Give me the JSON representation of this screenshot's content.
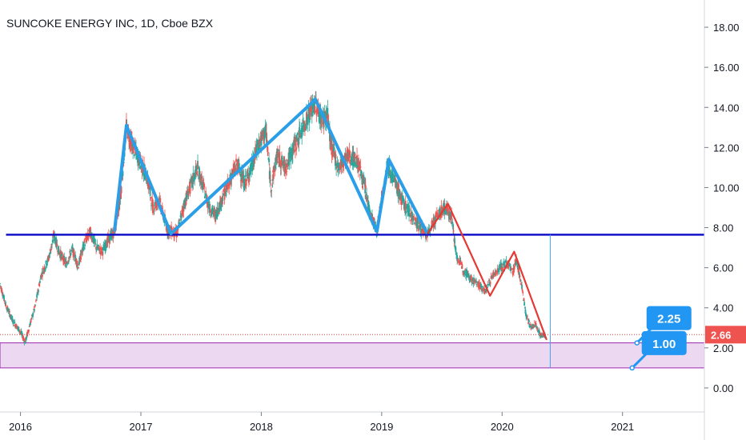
{
  "chart_data": {
    "type": "candlestick",
    "title": "SUNCOKE ENERGY INC, 1D, Cboe BZX",
    "x_ticks": [
      "2016",
      "2017",
      "2018",
      "2019",
      "2020",
      "2021"
    ],
    "y_ticks": [
      "0.00",
      "2.00",
      "4.00",
      "6.00",
      "8.00",
      "10.00",
      "12.00",
      "14.00",
      "16.00",
      "18.00"
    ],
    "ylim": [
      -1.2,
      19.2
    ],
    "xlim": [
      2015.83,
      2021.68
    ],
    "last_price": "2.66",
    "price_series": [
      [
        2015.83,
        5.2
      ],
      [
        2015.88,
        4.1
      ],
      [
        2015.94,
        3.3
      ],
      [
        2015.99,
        2.9
      ],
      [
        2016.04,
        2.3
      ],
      [
        2016.08,
        3.2
      ],
      [
        2016.12,
        4.0
      ],
      [
        2016.17,
        5.6
      ],
      [
        2016.23,
        6.4
      ],
      [
        2016.28,
        7.6
      ],
      [
        2016.32,
        6.8
      ],
      [
        2016.38,
        6.2
      ],
      [
        2016.43,
        6.9
      ],
      [
        2016.48,
        6.1
      ],
      [
        2016.53,
        7.2
      ],
      [
        2016.58,
        7.8
      ],
      [
        2016.63,
        7.0
      ],
      [
        2016.68,
        6.8
      ],
      [
        2016.73,
        7.4
      ],
      [
        2016.78,
        7.8
      ],
      [
        2016.83,
        9.5
      ],
      [
        2016.88,
        13.0
      ],
      [
        2016.93,
        12.1
      ],
      [
        2016.98,
        11.5
      ],
      [
        2017.05,
        10.5
      ],
      [
        2017.1,
        9.0
      ],
      [
        2017.15,
        9.4
      ],
      [
        2017.22,
        7.9
      ],
      [
        2017.3,
        7.7
      ],
      [
        2017.36,
        9.2
      ],
      [
        2017.42,
        10.2
      ],
      [
        2017.47,
        11.0
      ],
      [
        2017.52,
        10.0
      ],
      [
        2017.57,
        9.0
      ],
      [
        2017.62,
        8.6
      ],
      [
        2017.68,
        9.5
      ],
      [
        2017.74,
        10.4
      ],
      [
        2017.8,
        11.2
      ],
      [
        2017.86,
        10.2
      ],
      [
        2017.92,
        11.0
      ],
      [
        2017.98,
        12.2
      ],
      [
        2018.04,
        12.8
      ],
      [
        2018.08,
        10.0
      ],
      [
        2018.13,
        11.6
      ],
      [
        2018.2,
        11.0
      ],
      [
        2018.27,
        12.0
      ],
      [
        2018.33,
        12.8
      ],
      [
        2018.39,
        13.6
      ],
      [
        2018.45,
        14.2
      ],
      [
        2018.5,
        13.4
      ],
      [
        2018.55,
        13.6
      ],
      [
        2018.58,
        12.1
      ],
      [
        2018.64,
        11.0
      ],
      [
        2018.72,
        11.6
      ],
      [
        2018.8,
        11.3
      ],
      [
        2018.86,
        10.0
      ],
      [
        2018.9,
        8.8
      ],
      [
        2018.96,
        7.8
      ],
      [
        2019.0,
        9.5
      ],
      [
        2019.05,
        11.2
      ],
      [
        2019.1,
        10.4
      ],
      [
        2019.18,
        9.2
      ],
      [
        2019.25,
        8.6
      ],
      [
        2019.32,
        8.0
      ],
      [
        2019.38,
        7.6
      ],
      [
        2019.44,
        8.4
      ],
      [
        2019.52,
        9.0
      ],
      [
        2019.58,
        8.6
      ],
      [
        2019.62,
        6.6
      ],
      [
        2019.68,
        5.9
      ],
      [
        2019.75,
        5.4
      ],
      [
        2019.8,
        5.2
      ],
      [
        2019.86,
        4.8
      ],
      [
        2019.92,
        5.6
      ],
      [
        2019.98,
        6.0
      ],
      [
        2020.04,
        6.2
      ],
      [
        2020.09,
        5.8
      ],
      [
        2020.12,
        6.4
      ],
      [
        2020.16,
        5.2
      ],
      [
        2020.2,
        3.6
      ],
      [
        2020.24,
        3.0
      ],
      [
        2020.28,
        3.2
      ],
      [
        2020.32,
        2.6
      ],
      [
        2020.36,
        2.66
      ]
    ],
    "pattern_blue": [
      [
        2016.78,
        7.8
      ],
      [
        2016.88,
        13.1
      ],
      [
        2017.25,
        7.7
      ],
      [
        2018.45,
        14.4
      ],
      [
        2018.96,
        7.8
      ],
      [
        2019.06,
        11.4
      ],
      [
        2019.38,
        7.7
      ]
    ],
    "pattern_red": [
      [
        2019.38,
        7.7
      ],
      [
        2019.55,
        9.2
      ],
      [
        2019.9,
        4.6
      ],
      [
        2020.1,
        6.8
      ],
      [
        2020.37,
        2.4
      ]
    ],
    "support_line": {
      "y": 7.65,
      "x_start": 2015.88,
      "x_end": 2021.68,
      "color": "#1212c8"
    },
    "dotted_price_line": {
      "y": 2.66,
      "color": "#e53935"
    },
    "zone": {
      "y_top": 2.25,
      "y_bottom": 1.0,
      "x_start": 2015.83,
      "x_end": 2021.68,
      "fill": "#e1bee7",
      "stroke": "#9c27b0"
    },
    "thin_vline": {
      "x": 2020.4,
      "y_top": 7.65,
      "y_bottom": 1.0,
      "color": "#42a5f5"
    },
    "badges": [
      {
        "label": "2.25",
        "anchor": [
          2021.12,
          2.25
        ],
        "color": "#2196f3"
      },
      {
        "label": "1.00",
        "anchor": [
          2021.08,
          1.0
        ],
        "color": "#2196f3"
      }
    ],
    "colors": {
      "up": "#26a69a",
      "down": "#ef5350",
      "blue_pattern": "#2a9fe8",
      "red_pattern": "#e53935"
    }
  }
}
